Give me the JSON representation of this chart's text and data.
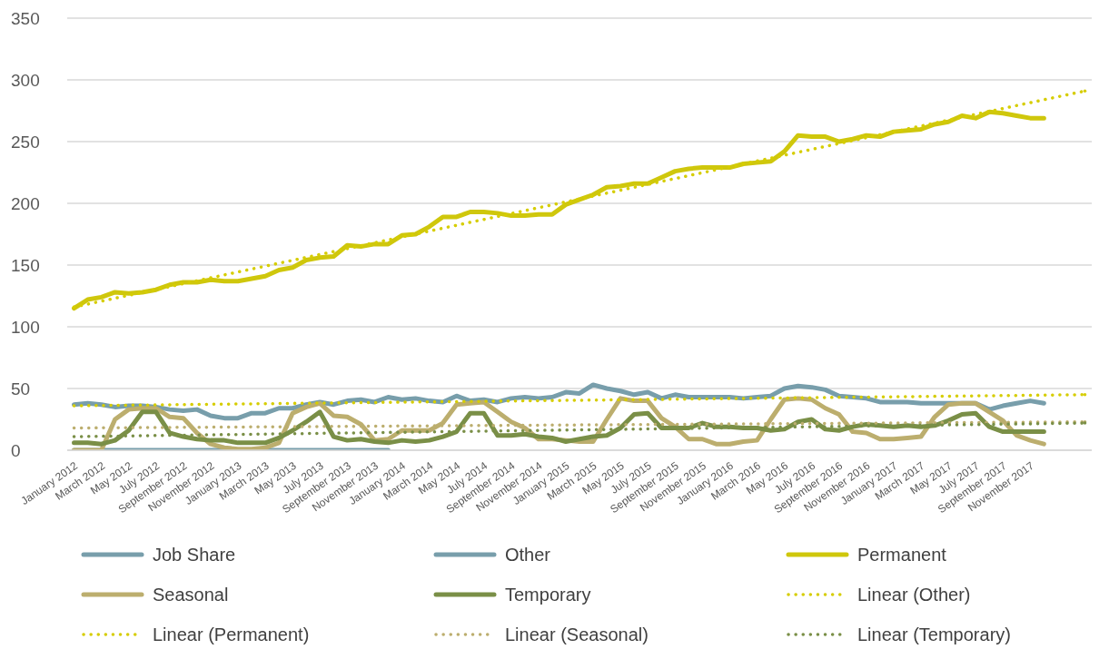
{
  "chart_data": {
    "type": "line",
    "x": [
      "2012-01",
      "2012-02",
      "2012-03",
      "2012-04",
      "2012-05",
      "2012-06",
      "2012-07",
      "2012-08",
      "2012-09",
      "2012-10",
      "2012-11",
      "2012-12",
      "2013-01",
      "2013-02",
      "2013-03",
      "2013-04",
      "2013-05",
      "2013-06",
      "2013-07",
      "2013-08",
      "2013-09",
      "2013-10",
      "2013-11",
      "2013-12",
      "2014-01",
      "2014-02",
      "2014-03",
      "2014-04",
      "2014-05",
      "2014-06",
      "2014-07",
      "2014-08",
      "2014-09",
      "2014-10",
      "2014-11",
      "2014-12",
      "2015-01",
      "2015-02",
      "2015-03",
      "2015-04",
      "2015-05",
      "2015-06",
      "2015-07",
      "2015-08",
      "2015-09",
      "2015-10",
      "2015-11",
      "2015-12",
      "2016-01",
      "2016-02",
      "2016-03",
      "2016-04",
      "2016-05",
      "2016-06",
      "2016-07",
      "2016-08",
      "2016-09",
      "2016-10",
      "2016-11",
      "2016-12",
      "2017-01",
      "2017-02",
      "2017-03",
      "2017-04",
      "2017-05",
      "2017-06",
      "2017-07",
      "2017-08",
      "2017-09",
      "2017-10",
      "2017-11",
      "2017-12"
    ],
    "xlim": [
      "2011-12-16",
      "2018-03-16"
    ],
    "xticks": [
      {
        "value": "2012-01",
        "label": "January 2012"
      },
      {
        "value": "2012-03",
        "label": "March 2012"
      },
      {
        "value": "2012-05",
        "label": "May 2012"
      },
      {
        "value": "2012-07",
        "label": "July 2012"
      },
      {
        "value": "2012-09",
        "label": "September 2012"
      },
      {
        "value": "2012-11",
        "label": "November 2012"
      },
      {
        "value": "2013-01",
        "label": "January 2013"
      },
      {
        "value": "2013-03",
        "label": "March 2013"
      },
      {
        "value": "2013-05",
        "label": "May 2013"
      },
      {
        "value": "2013-07",
        "label": "July 2013"
      },
      {
        "value": "2013-09",
        "label": "September 2013"
      },
      {
        "value": "2013-11",
        "label": "November 2013"
      },
      {
        "value": "2014-01",
        "label": "January 2014"
      },
      {
        "value": "2014-03",
        "label": "March 2014"
      },
      {
        "value": "2014-05",
        "label": "May 2014"
      },
      {
        "value": "2014-07",
        "label": "July 2014"
      },
      {
        "value": "2014-09",
        "label": "September 2014"
      },
      {
        "value": "2014-11",
        "label": "November 2014"
      },
      {
        "value": "2015-01",
        "label": "January 2015"
      },
      {
        "value": "2015-03",
        "label": "March 2015"
      },
      {
        "value": "2015-05",
        "label": "May 2015"
      },
      {
        "value": "2015-07",
        "label": "July 2015"
      },
      {
        "value": "2015-09",
        "label": "September 2015"
      },
      {
        "value": "2015-11",
        "label": "November 2015"
      },
      {
        "value": "2016-01",
        "label": "January 2016"
      },
      {
        "value": "2016-03",
        "label": "March 2016"
      },
      {
        "value": "2016-05",
        "label": "May 2016"
      },
      {
        "value": "2016-07",
        "label": "July 2016"
      },
      {
        "value": "2016-09",
        "label": "September 2016"
      },
      {
        "value": "2016-11",
        "label": "November 2016"
      },
      {
        "value": "2017-01",
        "label": "January 2017"
      },
      {
        "value": "2017-03",
        "label": "March 2017"
      },
      {
        "value": "2017-05",
        "label": "May 2017"
      },
      {
        "value": "2017-07",
        "label": "July 2017"
      },
      {
        "value": "2017-09",
        "label": "September 2017"
      },
      {
        "value": "2017-11",
        "label": "November 2017"
      }
    ],
    "ylim": [
      0,
      350
    ],
    "yticks": [
      0,
      50,
      100,
      150,
      200,
      250,
      300,
      350
    ],
    "grid": "y",
    "legend": "bottom",
    "marker": "none",
    "series": [
      {
        "name": "Job Share",
        "color": "#789eab",
        "line_style": "solid",
        "values": [
          0,
          0,
          0,
          0,
          0,
          0,
          0,
          0,
          0,
          0,
          0,
          0,
          0,
          0,
          0,
          0,
          0,
          0,
          0,
          0,
          0,
          0,
          0,
          0,
          null,
          null,
          null,
          null,
          null,
          null,
          null,
          null,
          null,
          null,
          null,
          null,
          null,
          null,
          null,
          null,
          null,
          null,
          null,
          null,
          null,
          null,
          null,
          null,
          null,
          null,
          null,
          null,
          null,
          null,
          null,
          null,
          null,
          null,
          null,
          null,
          null,
          null,
          null,
          null,
          null,
          null,
          null,
          null,
          null,
          null,
          null,
          null
        ]
      },
      {
        "name": "Other",
        "color": "#789eab",
        "line_style": "solid",
        "values": [
          37,
          38,
          37,
          35,
          36,
          36,
          35,
          33,
          32,
          33,
          28,
          26,
          26,
          30,
          30,
          34,
          34,
          37,
          39,
          37,
          40,
          41,
          39,
          43,
          41,
          42,
          40,
          39,
          44,
          40,
          41,
          39,
          42,
          43,
          42,
          43,
          47,
          46,
          53,
          50,
          48,
          45,
          47,
          42,
          45,
          43,
          43,
          43,
          43,
          42,
          43,
          44,
          50,
          52,
          51,
          49,
          44,
          43,
          42,
          39,
          39,
          39,
          38,
          38,
          38,
          38,
          38,
          33,
          36,
          38,
          40,
          38
        ]
      },
      {
        "name": "Permanent",
        "color": "#cfc70c",
        "line_style": "solid",
        "values": [
          115,
          122,
          124,
          128,
          127,
          128,
          130,
          134,
          136,
          136,
          138,
          137,
          137,
          139,
          141,
          146,
          148,
          154,
          156,
          157,
          166,
          165,
          167,
          167,
          174,
          175,
          181,
          189,
          189,
          193,
          193,
          192,
          190,
          190,
          191,
          191,
          199,
          203,
          207,
          213,
          214,
          216,
          216,
          221,
          226,
          228,
          229,
          229,
          229,
          232,
          233,
          234,
          242,
          255,
          254,
          254,
          250,
          252,
          255,
          254,
          258,
          259,
          260,
          264,
          266,
          271,
          269,
          274,
          273,
          271,
          269,
          269
        ]
      },
      {
        "name": "Seasonal",
        "color": "#bcae6e",
        "line_style": "solid",
        "values": [
          0,
          0,
          0,
          25,
          33,
          34,
          34,
          27,
          26,
          14,
          5,
          2,
          1,
          1,
          2,
          6,
          30,
          35,
          38,
          28,
          27,
          21,
          8,
          9,
          16,
          16,
          16,
          22,
          37,
          38,
          39,
          31,
          23,
          18,
          9,
          9,
          8,
          7,
          7,
          25,
          42,
          40,
          40,
          26,
          19,
          9,
          9,
          5,
          5,
          7,
          8,
          25,
          41,
          42,
          41,
          34,
          29,
          15,
          14,
          9,
          9,
          10,
          11,
          27,
          37,
          38,
          38,
          31,
          24,
          12,
          8,
          5
        ]
      },
      {
        "name": "Temporary",
        "color": "#7a8f47",
        "line_style": "solid",
        "values": [
          6,
          6,
          5,
          8,
          16,
          31,
          31,
          14,
          11,
          9,
          8,
          8,
          6,
          6,
          6,
          10,
          16,
          23,
          31,
          11,
          8,
          9,
          7,
          6,
          8,
          7,
          8,
          11,
          15,
          30,
          30,
          12,
          12,
          13,
          11,
          10,
          7,
          9,
          11,
          12,
          18,
          29,
          30,
          18,
          18,
          18,
          22,
          19,
          19,
          18,
          18,
          16,
          17,
          23,
          25,
          17,
          16,
          19,
          21,
          20,
          19,
          20,
          19,
          20,
          24,
          29,
          30,
          19,
          15,
          15,
          15,
          15
        ]
      },
      {
        "name": "Linear (Other)",
        "color": "#d6cd00",
        "line_style": "dotted",
        "x": [
          "2012-01",
          "2018-03"
        ],
        "values": [
          36,
          45
        ]
      },
      {
        "name": "Linear (Permanent)",
        "color": "#d6cd00",
        "line_style": "dotted",
        "x": [
          "2012-01",
          "2018-03"
        ],
        "values": [
          116,
          291
        ]
      },
      {
        "name": "Linear (Seasonal)",
        "color": "#bcae6e",
        "line_style": "dotted",
        "x": [
          "2012-01",
          "2018-03"
        ],
        "values": [
          18,
          23
        ]
      },
      {
        "name": "Linear (Temporary)",
        "color": "#7a8f47",
        "line_style": "dotted",
        "x": [
          "2012-01",
          "2018-03"
        ],
        "values": [
          11,
          22
        ]
      }
    ]
  }
}
